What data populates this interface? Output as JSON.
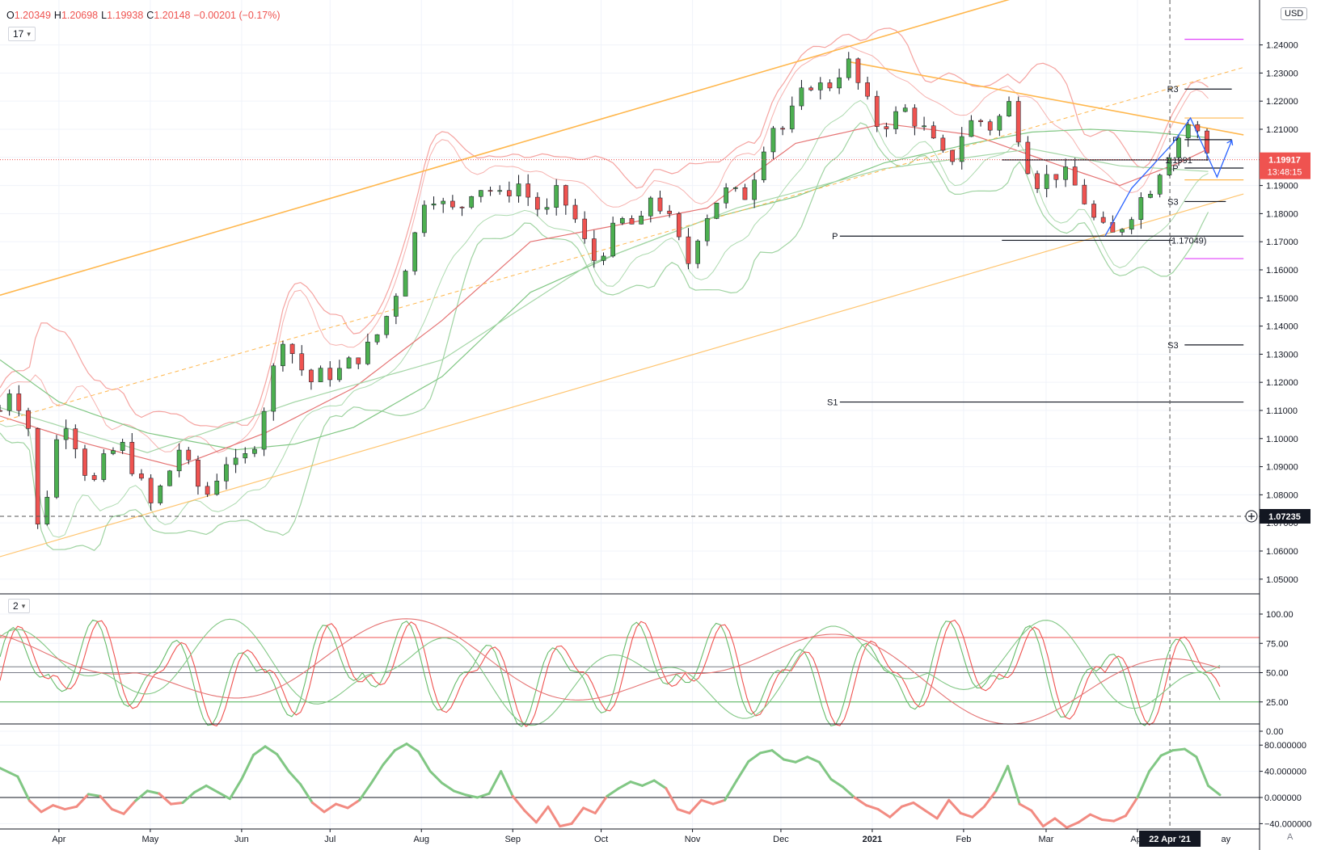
{
  "header": {
    "ohlc": [
      {
        "k": "O",
        "v": "1.20349"
      },
      {
        "k": "H",
        "v": "1.20698"
      },
      {
        "k": "L",
        "v": "1.19938"
      },
      {
        "k": "C",
        "v": "1.20148"
      },
      {
        "k": "",
        "v": "−0.00201 (−0.17%)"
      }
    ],
    "legend_main": "17",
    "legend_osc": "2",
    "currency": "USD",
    "auto_label": "A"
  },
  "colors": {
    "up": "#4caf50",
    "down": "#ef5350",
    "channel": "#ffb74d",
    "band_red": "#f5a3a0",
    "band_green": "#9fd3a1",
    "pivot_magenta": "#e040fb",
    "forecast": "#2962ff"
  },
  "chart_data": [
    {
      "type": "candlestick",
      "title": "",
      "y_ticks": [
        "1.24000",
        "1.23000",
        "1.22000",
        "1.21000",
        "1.20000",
        "1.19000",
        "1.18000",
        "1.17000",
        "1.16000",
        "1.15000",
        "1.14000",
        "1.13000",
        "1.12000",
        "1.11000",
        "1.10000",
        "1.09000",
        "1.08000",
        "1.07000",
        "1.06000",
        "1.05000"
      ],
      "ylim": [
        1.0455,
        1.2535
      ],
      "x_labels": [
        "Apr",
        "May",
        "Jun",
        "Jul",
        "Aug",
        "Sep",
        "Oct",
        "Nov",
        "Dec",
        "2021",
        "Feb",
        "Mar",
        "Apr"
      ],
      "x_label_partial": "ay",
      "current_price": "1.19917",
      "countdown": "13:48:15",
      "crosshair_price": "1.07235",
      "crosshair_date": "22 Apr '21",
      "pivot_labels": [
        {
          "label": "R3",
          "y": 1.2243
        },
        {
          "label": "P",
          "y": 1.2063
        },
        {
          "label": "P",
          "y": 1.1962
        },
        {
          "label": "S3",
          "y": 1.1843
        },
        {
          "label": "P",
          "y": 1.172
        },
        {
          "label": "S3",
          "y": 1.1333
        },
        {
          "label": "S1",
          "y": 1.113
        }
      ],
      "price_annotations": [
        "1.1991",
        "(1.17049)"
      ],
      "path": [
        [
          0,
          1.11
        ],
        [
          3,
          1.118
        ],
        [
          7,
          1.112
        ],
        [
          10,
          1.103
        ],
        [
          13,
          1.066
        ],
        [
          17,
          1.086
        ],
        [
          21,
          1.11
        ],
        [
          26,
          1.098
        ],
        [
          31,
          1.082
        ],
        [
          36,
          1.093
        ],
        [
          41,
          1.098
        ],
        [
          46,
          1.088
        ],
        [
          51,
          1.076
        ],
        [
          56,
          1.085
        ],
        [
          61,
          1.097
        ],
        [
          66,
          1.084
        ],
        [
          71,
          1.08
        ],
        [
          76,
          1.093
        ],
        [
          81,
          1.089
        ],
        [
          86,
          1.098
        ],
        [
          91,
          1.117
        ],
        [
          96,
          1.137
        ],
        [
          100,
          1.129
        ],
        [
          105,
          1.12
        ],
        [
          110,
          1.123
        ],
        [
          116,
          1.124
        ],
        [
          121,
          1.129
        ],
        [
          126,
          1.133
        ],
        [
          131,
          1.143
        ],
        [
          136,
          1.157
        ],
        [
          141,
          1.173
        ],
        [
          145,
          1.19
        ],
        [
          150,
          1.183
        ],
        [
          155,
          1.18
        ],
        [
          160,
          1.189
        ],
        [
          165,
          1.19
        ],
        [
          170,
          1.185
        ],
        [
          175,
          1.192
        ],
        [
          180,
          1.185
        ],
        [
          185,
          1.179
        ],
        [
          189,
          1.187
        ],
        [
          194,
          1.181
        ],
        [
          198,
          1.17
        ],
        [
          202,
          1.163
        ],
        [
          207,
          1.172
        ],
        [
          212,
          1.178
        ],
        [
          217,
          1.174
        ],
        [
          221,
          1.187
        ],
        [
          226,
          1.18
        ],
        [
          231,
          1.168
        ],
        [
          234,
          1.162
        ],
        [
          237,
          1.174
        ],
        [
          242,
          1.184
        ],
        [
          247,
          1.188
        ],
        [
          252,
          1.185
        ],
        [
          257,
          1.197
        ],
        [
          261,
          1.212
        ],
        [
          266,
          1.21
        ],
        [
          270,
          1.218
        ],
        [
          275,
          1.227
        ],
        [
          280,
          1.224
        ],
        [
          285,
          1.231
        ],
        [
          288,
          1.233
        ],
        [
          293,
          1.222
        ],
        [
          297,
          1.212
        ],
        [
          302,
          1.213
        ],
        [
          307,
          1.217
        ],
        [
          312,
          1.212
        ],
        [
          317,
          1.204
        ],
        [
          322,
          1.197
        ],
        [
          326,
          1.208
        ],
        [
          331,
          1.214
        ],
        [
          336,
          1.211
        ],
        [
          341,
          1.216
        ],
        [
          343,
          1.22
        ],
        [
          345,
          1.211
        ],
        [
          349,
          1.197
        ],
        [
          353,
          1.19
        ],
        [
          357,
          1.195
        ],
        [
          362,
          1.193
        ],
        [
          367,
          1.187
        ],
        [
          371,
          1.178
        ],
        [
          375,
          1.173
        ],
        [
          378,
          1.172
        ],
        [
          382,
          1.178
        ],
        [
          386,
          1.184
        ],
        [
          390,
          1.189
        ],
        [
          394,
          1.197
        ],
        [
          397,
          1.203
        ],
        [
          401,
          1.209
        ],
        [
          404,
          1.213
        ],
        [
          407,
          1.207
        ],
        [
          410,
          1.201
        ]
      ],
      "series": [
        {
          "name": "",
          "role": "sma-slow",
          "points": [
            [
              0,
              1.128
            ],
            [
              20,
              1.113
            ],
            [
              50,
              1.102
            ],
            [
              80,
              1.096
            ],
            [
              100,
              1.098
            ],
            [
              120,
              1.104
            ],
            [
              150,
              1.122
            ],
            [
              180,
              1.152
            ],
            [
              210,
              1.166
            ],
            [
              240,
              1.178
            ],
            [
              270,
              1.186
            ],
            [
              300,
              1.198
            ],
            [
              330,
              1.205
            ],
            [
              350,
              1.209
            ],
            [
              370,
              1.21
            ],
            [
              390,
              1.209
            ],
            [
              410,
              1.207
            ]
          ]
        },
        {
          "name": "",
          "role": "sma-mid",
          "points": [
            [
              0,
              1.108
            ],
            [
              30,
              1.098
            ],
            [
              60,
              1.09
            ],
            [
              90,
              1.102
            ],
            [
              120,
              1.118
            ],
            [
              150,
              1.142
            ],
            [
              180,
              1.17
            ],
            [
              210,
              1.176
            ],
            [
              240,
              1.182
            ],
            [
              270,
              1.205
            ],
            [
              300,
              1.212
            ],
            [
              330,
              1.208
            ],
            [
              360,
              1.197
            ],
            [
              380,
              1.19
            ],
            [
              400,
              1.198
            ],
            [
              410,
              1.203
            ]
          ]
        },
        {
          "name": "",
          "role": "sma-long",
          "points": [
            [
              0,
              1.111
            ],
            [
              50,
              1.095
            ],
            [
              100,
              1.113
            ],
            [
              150,
              1.128
            ],
            [
              200,
              1.162
            ],
            [
              250,
              1.182
            ],
            [
              300,
              1.196
            ],
            [
              350,
              1.203
            ],
            [
              380,
              1.197
            ],
            [
              410,
              1.195
            ]
          ]
        }
      ],
      "trendlines": [
        {
          "role": "channel-upper",
          "from": [
            0,
            1.151
          ],
          "to": [
            355,
            1.26
          ]
        },
        {
          "role": "channel-lower",
          "from": [
            0,
            1.058
          ],
          "to": [
            422,
            1.187
          ]
        },
        {
          "role": "mid-dashed",
          "from": [
            0,
            1.106
          ],
          "to": [
            422,
            1.232
          ]
        },
        {
          "role": "descending",
          "from": [
            288,
            1.234
          ],
          "to": [
            422,
            1.208
          ]
        }
      ],
      "pivot_lines": [
        {
          "y": 1.2243,
          "from": 402,
          "to": 418,
          "color": "#131722"
        },
        {
          "y": 1.242,
          "from": 402,
          "to": 422,
          "color": "#e040fb"
        },
        {
          "y": 1.214,
          "from": 402,
          "to": 422,
          "color": "#ffb74d"
        },
        {
          "y": 1.2063,
          "from": 402,
          "to": 418,
          "color": "#131722"
        },
        {
          "y": 1.1991,
          "from": 340,
          "to": 410,
          "color": "#131722"
        },
        {
          "y": 1.1962,
          "from": 402,
          "to": 422,
          "color": "#131722"
        },
        {
          "y": 1.192,
          "from": 402,
          "to": 422,
          "color": "#ffb74d"
        },
        {
          "y": 1.1843,
          "from": 402,
          "to": 416,
          "color": "#131722"
        },
        {
          "y": 1.172,
          "from": 285,
          "to": 422,
          "color": "#131722"
        },
        {
          "y": 1.1705,
          "from": 340,
          "to": 398,
          "color": "#131722"
        },
        {
          "y": 1.164,
          "from": 402,
          "to": 422,
          "color": "#e040fb"
        },
        {
          "y": 1.1333,
          "from": 402,
          "to": 422,
          "color": "#131722"
        },
        {
          "y": 1.113,
          "from": 285,
          "to": 422,
          "color": "#131722"
        }
      ]
    },
    {
      "type": "line",
      "title": "",
      "y_ticks": [
        "100.00",
        "75.00",
        "50.00",
        "25.00",
        "0.00"
      ],
      "ylim": [
        -2,
        104
      ],
      "levels": [
        80,
        55,
        50,
        25
      ]
    },
    {
      "type": "line",
      "title": "",
      "y_ticks": [
        "80.000000",
        "40.000000",
        "0.000000",
        "−40.000000"
      ],
      "ylim": [
        -56,
        96
      ],
      "zero_line": 0,
      "path": [
        [
          0,
          45
        ],
        [
          6,
          32
        ],
        [
          10,
          -5
        ],
        [
          14,
          -22
        ],
        [
          18,
          -12
        ],
        [
          22,
          -18
        ],
        [
          26,
          -14
        ],
        [
          30,
          5
        ],
        [
          34,
          2
        ],
        [
          38,
          -18
        ],
        [
          42,
          -25
        ],
        [
          46,
          -5
        ],
        [
          50,
          10
        ],
        [
          54,
          6
        ],
        [
          58,
          -10
        ],
        [
          62,
          -8
        ],
        [
          66,
          8
        ],
        [
          70,
          18
        ],
        [
          74,
          8
        ],
        [
          78,
          -2
        ],
        [
          82,
          28
        ],
        [
          86,
          65
        ],
        [
          90,
          78
        ],
        [
          94,
          66
        ],
        [
          98,
          40
        ],
        [
          102,
          20
        ],
        [
          106,
          -8
        ],
        [
          110,
          -22
        ],
        [
          114,
          -10
        ],
        [
          118,
          -16
        ],
        [
          122,
          -4
        ],
        [
          126,
          22
        ],
        [
          130,
          50
        ],
        [
          134,
          72
        ],
        [
          138,
          82
        ],
        [
          142,
          70
        ],
        [
          146,
          40
        ],
        [
          150,
          22
        ],
        [
          154,
          10
        ],
        [
          158,
          4
        ],
        [
          162,
          0
        ],
        [
          166,
          6
        ],
        [
          170,
          40
        ],
        [
          174,
          2
        ],
        [
          178,
          -20
        ],
        [
          182,
          -38
        ],
        [
          186,
          -14
        ],
        [
          190,
          -44
        ],
        [
          194,
          -40
        ],
        [
          198,
          -16
        ],
        [
          202,
          -24
        ],
        [
          206,
          2
        ],
        [
          210,
          14
        ],
        [
          214,
          24
        ],
        [
          218,
          18
        ],
        [
          222,
          26
        ],
        [
          226,
          14
        ],
        [
          230,
          -18
        ],
        [
          234,
          -24
        ],
        [
          238,
          -4
        ],
        [
          242,
          -10
        ],
        [
          246,
          -4
        ],
        [
          250,
          26
        ],
        [
          254,
          55
        ],
        [
          258,
          68
        ],
        [
          262,
          72
        ],
        [
          266,
          58
        ],
        [
          270,
          54
        ],
        [
          274,
          62
        ],
        [
          278,
          54
        ],
        [
          282,
          28
        ],
        [
          286,
          16
        ],
        [
          290,
          0
        ],
        [
          294,
          -12
        ],
        [
          298,
          -18
        ],
        [
          302,
          -30
        ],
        [
          306,
          -14
        ],
        [
          310,
          -8
        ],
        [
          314,
          -20
        ],
        [
          318,
          -32
        ],
        [
          322,
          -4
        ],
        [
          326,
          -24
        ],
        [
          330,
          -30
        ],
        [
          334,
          -14
        ],
        [
          338,
          10
        ],
        [
          342,
          48
        ],
        [
          346,
          -10
        ],
        [
          350,
          -20
        ],
        [
          354,
          -44
        ],
        [
          358,
          -32
        ],
        [
          362,
          -46
        ],
        [
          366,
          -38
        ],
        [
          370,
          -26
        ],
        [
          374,
          -34
        ],
        [
          378,
          -36
        ],
        [
          382,
          -28
        ],
        [
          386,
          0
        ],
        [
          390,
          40
        ],
        [
          394,
          64
        ],
        [
          398,
          72
        ],
        [
          402,
          74
        ],
        [
          406,
          62
        ],
        [
          410,
          18
        ],
        [
          414,
          4
        ]
      ]
    }
  ]
}
